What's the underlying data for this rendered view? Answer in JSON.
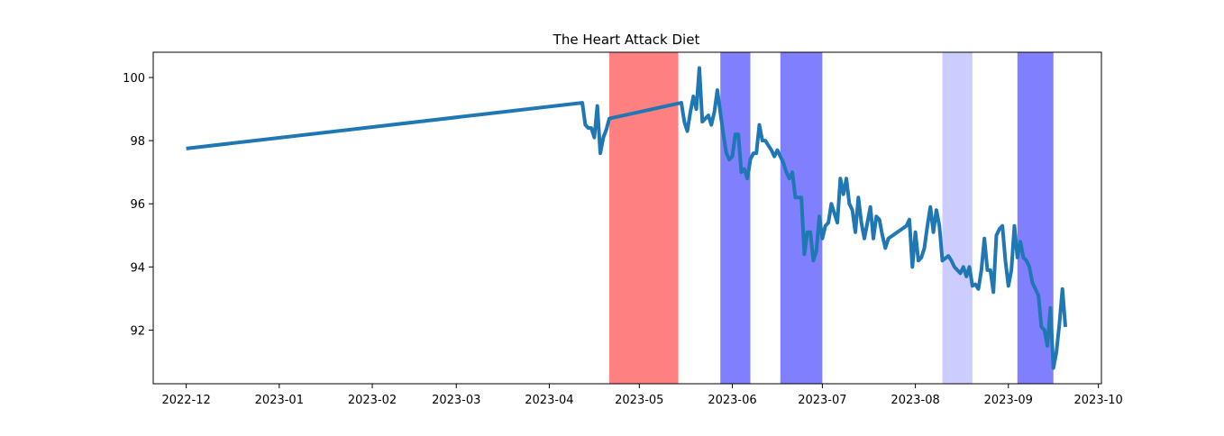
{
  "chart_data": {
    "type": "line",
    "title": "The Heart Attack Diet",
    "xlabel": "",
    "ylabel": "",
    "xlim": [
      "2022-11-20",
      "2023-10-02"
    ],
    "ylim": [
      90.3,
      100.8
    ],
    "x_ticks": [
      "2022-12",
      "2023-01",
      "2023-02",
      "2023-03",
      "2023-04",
      "2023-05",
      "2023-06",
      "2023-07",
      "2023-08",
      "2023-09",
      "2023-10"
    ],
    "y_ticks": [
      92,
      94,
      96,
      98,
      100
    ],
    "grid": false,
    "legend": "none",
    "line_color": "#1f77b4",
    "spans": [
      {
        "start": "2023-04-21",
        "end": "2023-05-14",
        "color": "#ff8080"
      },
      {
        "start": "2023-05-28",
        "end": "2023-06-07",
        "color": "#8080ff"
      },
      {
        "start": "2023-06-17",
        "end": "2023-07-01",
        "color": "#8080ff"
      },
      {
        "start": "2023-08-10",
        "end": "2023-08-20",
        "color": "#ccccff"
      },
      {
        "start": "2023-09-04",
        "end": "2023-09-16",
        "color": "#8080ff"
      }
    ],
    "series": [
      {
        "points": [
          [
            "2022-12-01",
            97.75
          ],
          [
            "2023-04-12",
            99.2
          ],
          [
            "2023-04-13",
            98.5
          ],
          [
            "2023-04-14",
            98.4
          ],
          [
            "2023-04-15",
            98.4
          ],
          [
            "2023-04-16",
            98.1
          ],
          [
            "2023-04-17",
            99.1
          ],
          [
            "2023-04-18",
            97.6
          ],
          [
            "2023-04-19",
            98.1
          ],
          [
            "2023-04-20",
            98.35
          ],
          [
            "2023-04-21",
            98.7
          ],
          [
            "2023-05-15",
            99.2
          ],
          [
            "2023-05-16",
            98.6
          ],
          [
            "2023-05-17",
            98.3
          ],
          [
            "2023-05-18",
            98.9
          ],
          [
            "2023-05-19",
            99.4
          ],
          [
            "2023-05-20",
            99.0
          ],
          [
            "2023-05-21",
            100.3
          ],
          [
            "2023-05-22",
            98.6
          ],
          [
            "2023-05-23",
            98.7
          ],
          [
            "2023-05-24",
            98.8
          ],
          [
            "2023-05-25",
            98.5
          ],
          [
            "2023-05-26",
            98.9
          ],
          [
            "2023-05-27",
            99.6
          ],
          [
            "2023-05-28",
            98.9
          ],
          [
            "2023-05-29",
            98.2
          ],
          [
            "2023-05-30",
            97.6
          ],
          [
            "2023-05-31",
            97.4
          ],
          [
            "2023-06-01",
            97.5
          ],
          [
            "2023-06-02",
            98.2
          ],
          [
            "2023-06-03",
            98.2
          ],
          [
            "2023-06-04",
            97.0
          ],
          [
            "2023-06-05",
            97.1
          ],
          [
            "2023-06-06",
            96.8
          ],
          [
            "2023-06-07",
            97.4
          ],
          [
            "2023-06-08",
            97.6
          ],
          [
            "2023-06-09",
            97.6
          ],
          [
            "2023-06-10",
            98.5
          ],
          [
            "2023-06-11",
            98.0
          ],
          [
            "2023-06-12",
            98.0
          ],
          [
            "2023-06-13",
            97.85
          ],
          [
            "2023-06-14",
            97.7
          ],
          [
            "2023-06-15",
            97.5
          ],
          [
            "2023-06-16",
            97.7
          ],
          [
            "2023-06-17",
            97.5
          ],
          [
            "2023-06-18",
            97.3
          ],
          [
            "2023-06-19",
            97.0
          ],
          [
            "2023-06-20",
            96.8
          ],
          [
            "2023-06-21",
            97.0
          ],
          [
            "2023-06-22",
            96.2
          ],
          [
            "2023-06-23",
            96.2
          ],
          [
            "2023-06-24",
            96.2
          ],
          [
            "2023-06-25",
            94.4
          ],
          [
            "2023-06-26",
            95.1
          ],
          [
            "2023-06-27",
            95.1
          ],
          [
            "2023-06-28",
            94.2
          ],
          [
            "2023-06-29",
            94.5
          ],
          [
            "2023-06-30",
            95.6
          ],
          [
            "2023-07-01",
            94.9
          ],
          [
            "2023-07-02",
            95.3
          ],
          [
            "2023-07-03",
            95.4
          ],
          [
            "2023-07-04",
            96.0
          ],
          [
            "2023-07-05",
            95.7
          ],
          [
            "2023-07-06",
            95.4
          ],
          [
            "2023-07-07",
            96.8
          ],
          [
            "2023-07-08",
            96.3
          ],
          [
            "2023-07-09",
            96.8
          ],
          [
            "2023-07-10",
            96.0
          ],
          [
            "2023-07-11",
            95.8
          ],
          [
            "2023-07-12",
            95.1
          ],
          [
            "2023-07-13",
            96.2
          ],
          [
            "2023-07-14",
            95.4
          ],
          [
            "2023-07-15",
            94.9
          ],
          [
            "2023-07-16",
            95.4
          ],
          [
            "2023-07-17",
            95.9
          ],
          [
            "2023-07-18",
            94.9
          ],
          [
            "2023-07-19",
            95.6
          ],
          [
            "2023-07-20",
            95.5
          ],
          [
            "2023-07-21",
            95.0
          ],
          [
            "2023-07-22",
            94.6
          ],
          [
            "2023-07-23",
            94.9
          ],
          [
            "2023-07-29",
            95.3
          ],
          [
            "2023-07-30",
            95.5
          ],
          [
            "2023-07-31",
            94.0
          ],
          [
            "2023-08-01",
            95.1
          ],
          [
            "2023-08-02",
            94.2
          ],
          [
            "2023-08-03",
            94.3
          ],
          [
            "2023-08-04",
            94.6
          ],
          [
            "2023-08-05",
            95.3
          ],
          [
            "2023-08-06",
            95.9
          ],
          [
            "2023-08-07",
            95.1
          ],
          [
            "2023-08-08",
            95.8
          ],
          [
            "2023-08-09",
            95.3
          ],
          [
            "2023-08-10",
            94.2
          ],
          [
            "2023-08-12",
            94.35
          ],
          [
            "2023-08-13",
            94.2
          ],
          [
            "2023-08-14",
            94.0
          ],
          [
            "2023-08-15",
            93.9
          ],
          [
            "2023-08-16",
            93.8
          ],
          [
            "2023-08-17",
            94.0
          ],
          [
            "2023-08-18",
            93.7
          ],
          [
            "2023-08-19",
            94.0
          ],
          [
            "2023-08-20",
            93.4
          ],
          [
            "2023-08-21",
            93.45
          ],
          [
            "2023-08-22",
            93.3
          ],
          [
            "2023-08-23",
            93.9
          ],
          [
            "2023-08-24",
            94.9
          ],
          [
            "2023-08-25",
            93.9
          ],
          [
            "2023-08-26",
            93.9
          ],
          [
            "2023-08-27",
            93.2
          ],
          [
            "2023-08-28",
            95.0
          ],
          [
            "2023-08-29",
            95.2
          ],
          [
            "2023-08-30",
            95.3
          ],
          [
            "2023-08-31",
            94.2
          ],
          [
            "2023-09-01",
            93.4
          ],
          [
            "2023-09-02",
            93.9
          ],
          [
            "2023-09-03",
            95.3
          ],
          [
            "2023-09-04",
            94.3
          ],
          [
            "2023-09-05",
            94.8
          ],
          [
            "2023-09-06",
            94.3
          ],
          [
            "2023-09-07",
            94.2
          ],
          [
            "2023-09-08",
            94.0
          ],
          [
            "2023-09-09",
            93.5
          ],
          [
            "2023-09-10",
            93.3
          ],
          [
            "2023-09-11",
            93.1
          ],
          [
            "2023-09-12",
            92.1
          ],
          [
            "2023-09-13",
            92.0
          ],
          [
            "2023-09-14",
            91.5
          ],
          [
            "2023-09-15",
            92.7
          ],
          [
            "2023-09-16",
            90.8
          ],
          [
            "2023-09-17",
            91.3
          ],
          [
            "2023-09-18",
            92.2
          ],
          [
            "2023-09-19",
            93.3
          ],
          [
            "2023-09-20",
            92.1
          ]
        ]
      }
    ]
  }
}
